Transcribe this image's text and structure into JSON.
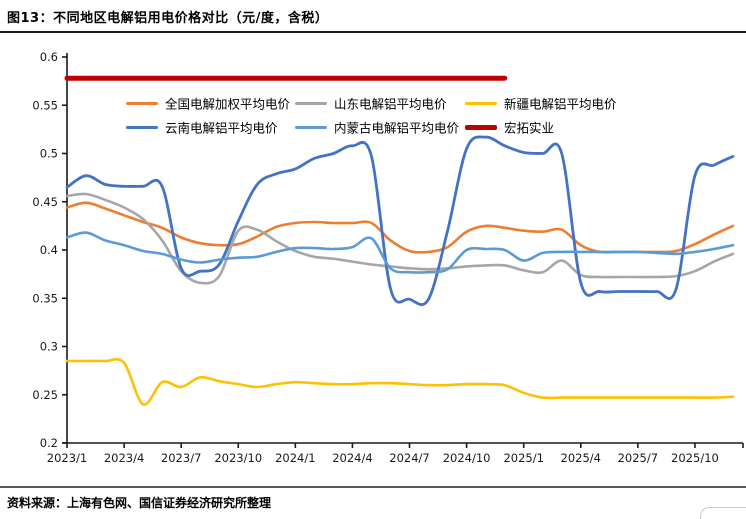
{
  "figure": {
    "title": "图13：不同地区电解铝用电价格对比（元/度，含税）",
    "source_note": "资料来源：上海有色网、国信证券经济研究所整理"
  },
  "chart_data": {
    "type": "line",
    "title": "不同地区电解铝用电价格对比（元/度，含税）",
    "xlabel": "",
    "ylabel": "",
    "ylim": [
      0.2,
      0.6
    ],
    "y_ticks": [
      0.6,
      0.55,
      0.5,
      0.45,
      0.4,
      0.35,
      0.3,
      0.25,
      0.2
    ],
    "y_tick_labels": [
      "0.6",
      "0.55",
      "0.5",
      "0.45",
      "0.4",
      "0.35",
      "0.3",
      "0.25",
      "0.2"
    ],
    "x_tick_labels": [
      "2023/1",
      "2023/4",
      "2023/7",
      "2023/10",
      "2024/1",
      "2024/4",
      "2024/7",
      "2024/10",
      "2025/1",
      "2025/4",
      "2025/7",
      "2025/10"
    ],
    "grid": false,
    "legend_position": "top-inside",
    "smooth": true,
    "categories": [
      "2023/1",
      "2023/2",
      "2023/3",
      "2023/4",
      "2023/5",
      "2023/6",
      "2023/7",
      "2023/8",
      "2023/9",
      "2023/10",
      "2023/11",
      "2023/12",
      "2024/1",
      "2024/2",
      "2024/3",
      "2024/4",
      "2024/5",
      "2024/6",
      "2024/7",
      "2024/8",
      "2024/9",
      "2024/10",
      "2024/11",
      "2024/12",
      "2025/1",
      "2025/2",
      "2025/3",
      "2025/4",
      "2025/5",
      "2025/6",
      "2025/7",
      "2025/8",
      "2025/9",
      "2025/10",
      "2025/11",
      "2025/12"
    ],
    "series": [
      {
        "name": "全国电解加权平均电价",
        "color": "#ED7D31",
        "width": 2.6,
        "values": [
          0.444,
          0.449,
          0.443,
          0.436,
          0.429,
          0.423,
          0.413,
          0.407,
          0.405,
          0.406,
          0.414,
          0.424,
          0.428,
          0.429,
          0.428,
          0.428,
          0.428,
          0.41,
          0.399,
          0.398,
          0.403,
          0.419,
          0.425,
          0.423,
          0.42,
          0.419,
          0.421,
          0.405,
          0.398,
          0.398,
          0.398,
          0.398,
          0.399,
          0.406,
          0.416,
          0.425
        ]
      },
      {
        "name": "山东电解铝平均电价",
        "color": "#A6A6A6",
        "width": 2.6,
        "values": [
          0.456,
          0.458,
          0.452,
          0.444,
          0.432,
          0.41,
          0.378,
          0.366,
          0.373,
          0.42,
          0.421,
          0.409,
          0.399,
          0.393,
          0.391,
          0.388,
          0.385,
          0.383,
          0.381,
          0.38,
          0.381,
          0.383,
          0.384,
          0.384,
          0.379,
          0.377,
          0.389,
          0.374,
          0.372,
          0.372,
          0.372,
          0.372,
          0.373,
          0.378,
          0.388,
          0.396
        ]
      },
      {
        "name": "新疆电解铝平均电价",
        "color": "#FFC000",
        "width": 2.6,
        "values": [
          0.285,
          0.285,
          0.285,
          0.283,
          0.24,
          0.263,
          0.258,
          0.268,
          0.264,
          0.261,
          0.258,
          0.261,
          0.263,
          0.262,
          0.261,
          0.261,
          0.262,
          0.262,
          0.261,
          0.26,
          0.26,
          0.261,
          0.261,
          0.26,
          0.252,
          0.247,
          0.247,
          0.247,
          0.247,
          0.247,
          0.247,
          0.247,
          0.247,
          0.247,
          0.247,
          0.248
        ]
      },
      {
        "name": "云南电解铝平均电价",
        "color": "#4472C4",
        "width": 2.8,
        "values": [
          0.465,
          0.477,
          0.468,
          0.466,
          0.466,
          0.466,
          0.381,
          0.378,
          0.385,
          0.43,
          0.468,
          0.479,
          0.484,
          0.495,
          0.5,
          0.508,
          0.497,
          0.36,
          0.349,
          0.349,
          0.42,
          0.505,
          0.517,
          0.508,
          0.501,
          0.5,
          0.5,
          0.366,
          0.357,
          0.357,
          0.357,
          0.357,
          0.359,
          0.477,
          0.488,
          0.497
        ]
      },
      {
        "name": "内蒙古电解铝平均电价",
        "color": "#5B9BD5",
        "width": 2.6,
        "values": [
          0.413,
          0.418,
          0.41,
          0.405,
          0.399,
          0.396,
          0.39,
          0.387,
          0.39,
          0.392,
          0.393,
          0.398,
          0.402,
          0.402,
          0.401,
          0.403,
          0.412,
          0.381,
          0.377,
          0.377,
          0.38,
          0.4,
          0.401,
          0.4,
          0.389,
          0.397,
          0.398,
          0.398,
          0.398,
          0.398,
          0.398,
          0.397,
          0.396,
          0.398,
          0.401,
          0.405
        ]
      },
      {
        "name": "宏拓实业",
        "color": "#C00000",
        "width": 5,
        "values": [
          0.578,
          0.578,
          0.578,
          0.578,
          0.578,
          0.578,
          0.578,
          0.578,
          0.578,
          0.578,
          0.578,
          0.578,
          0.578,
          0.578,
          0.578,
          0.578,
          0.578,
          0.578,
          0.578,
          0.578,
          0.578,
          0.578,
          0.578,
          0.578,
          null,
          null,
          null,
          null,
          null,
          null,
          null,
          null,
          null,
          null,
          null,
          null
        ]
      }
    ]
  }
}
